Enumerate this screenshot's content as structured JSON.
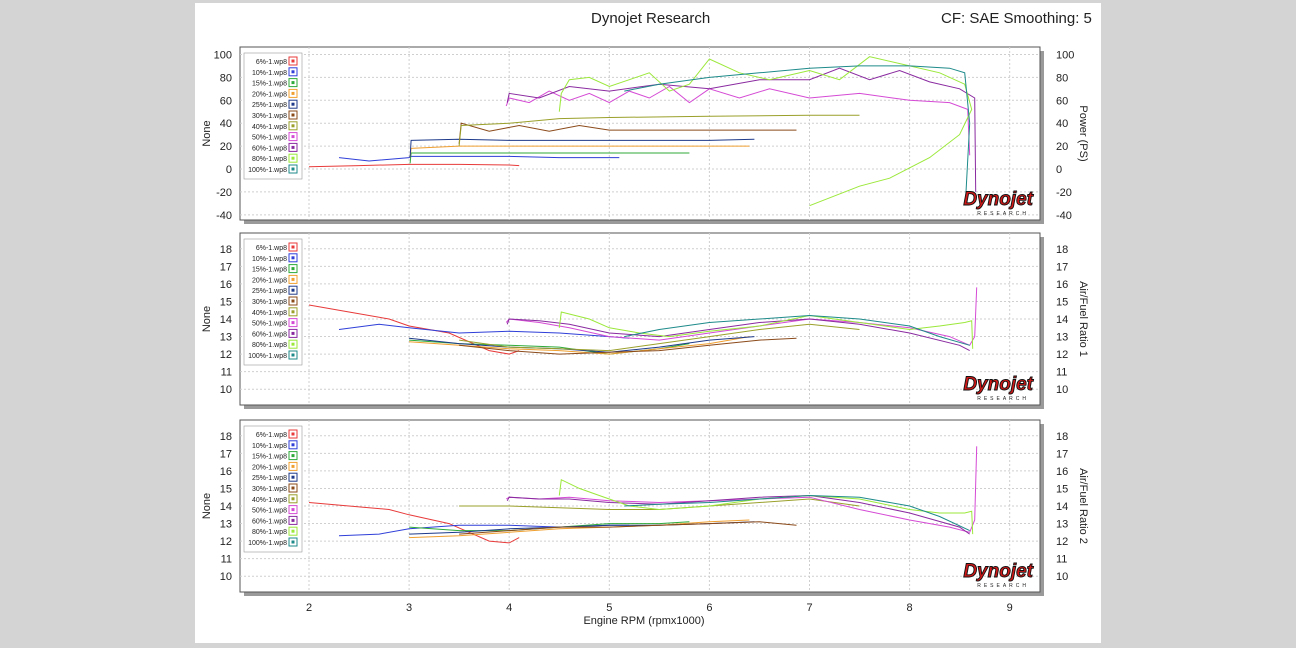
{
  "header": {
    "title": "Dynojet Research",
    "right": "CF: SAE Smoothing: 5"
  },
  "colors": {
    "6%-1.wp8": "#e83a3a",
    "10%-1.wp8": "#2f3fd8",
    "15%-1.wp8": "#2eaa3a",
    "20%-1.wp8": "#f0a030",
    "25%-1.wp8": "#1e3a8a",
    "30%-1.wp8": "#8b4a1a",
    "40%-1.wp8": "#9aa02a",
    "50%-1.wp8": "#d54ad5",
    "60%-1.wp8": "#8a2aa0",
    "80%-1.wp8": "#9be83a",
    "100%-1.wp8": "#1e8a8a"
  },
  "logo_text": "Dynojet",
  "logo_sub": "RESEARCH",
  "chart_data": [
    {
      "type": "line",
      "ylabel_left": "None",
      "ylabel_right": "Power (PS)",
      "xlabel": "",
      "ylim": [
        -40,
        100
      ],
      "xlim": [
        1.3,
        9.4
      ],
      "yticks": [
        "100",
        "80",
        "60",
        "40",
        "20",
        "0",
        "-20",
        "-40"
      ],
      "legend": [
        "6%-1.wp8",
        "10%-1.wp8",
        "15%-1.wp8",
        "20%-1.wp8",
        "25%-1.wp8",
        "30%-1.wp8",
        "40%-1.wp8",
        "50%-1.wp8",
        "60%-1.wp8",
        "80%-1.wp8",
        "100%-1.wp8"
      ],
      "series": [
        {
          "name": "6%-1.wp8",
          "x": [
            2.0,
            2.5,
            3.0,
            3.5,
            4.0,
            4.1
          ],
          "y": [
            2,
            3,
            4,
            4,
            3.5,
            3
          ]
        },
        {
          "name": "10%-1.wp8",
          "x": [
            2.3,
            2.6,
            3.0,
            3.01,
            3.5,
            4.0,
            4.5,
            5.0,
            5.1
          ],
          "y": [
            10,
            7,
            10,
            11,
            11,
            11,
            10,
            10,
            10
          ]
        },
        {
          "name": "15%-1.wp8",
          "x": [
            3.01,
            3.02,
            3.5,
            4.0,
            5.0,
            5.8
          ],
          "y": [
            5,
            14,
            14,
            14,
            14,
            14
          ]
        },
        {
          "name": "20%-1.wp8",
          "x": [
            3.01,
            3.02,
            3.5,
            4.0,
            5.0,
            6.0,
            6.4
          ],
          "y": [
            10,
            18,
            20,
            20,
            20,
            20,
            20
          ]
        },
        {
          "name": "25%-1.wp8",
          "x": [
            3.01,
            3.02,
            3.5,
            4.0,
            5.0,
            6.0,
            6.45
          ],
          "y": [
            10,
            25,
            26,
            25,
            25,
            25,
            26
          ]
        },
        {
          "name": "30%-1.wp8",
          "x": [
            3.5,
            3.52,
            3.8,
            4.1,
            4.4,
            4.7,
            5.0,
            5.5,
            6.0,
            6.5,
            6.87
          ],
          "y": [
            22,
            40,
            33,
            38,
            33,
            38,
            34,
            34,
            34,
            34,
            34
          ]
        },
        {
          "name": "40%-1.wp8",
          "x": [
            3.5,
            3.52,
            4.0,
            4.5,
            5.0,
            6.0,
            7.0,
            7.5
          ],
          "y": [
            20,
            38,
            40,
            44,
            45,
            46,
            47,
            47
          ]
        },
        {
          "name": "50%-1.wp8",
          "x": [
            3.97,
            4.0,
            4.2,
            4.4,
            4.6,
            4.8,
            5.0,
            5.2,
            5.4,
            5.6,
            5.8,
            6.0,
            6.3,
            6.6,
            7.0,
            7.5,
            8.0,
            8.4,
            8.58,
            8.6
          ],
          "y": [
            55,
            62,
            58,
            68,
            60,
            66,
            58,
            68,
            62,
            72,
            58,
            70,
            62,
            70,
            62,
            66,
            60,
            58,
            52,
            12
          ]
        },
        {
          "name": "60%-1.wp8",
          "x": [
            3.98,
            4.0,
            4.3,
            4.6,
            5.0,
            5.5,
            6.0,
            6.5,
            7.0,
            7.3,
            7.6,
            7.9,
            8.2,
            8.5,
            8.65,
            8.66
          ],
          "y": [
            58,
            66,
            62,
            72,
            68,
            74,
            70,
            78,
            78,
            88,
            78,
            86,
            76,
            70,
            62,
            -20
          ]
        },
        {
          "name": "80%-1.wp8",
          "x": [
            4.5,
            4.52,
            4.6,
            4.8,
            5.0,
            5.2,
            5.4,
            5.6,
            5.8,
            6.0,
            6.3,
            6.6,
            7.0,
            7.3,
            7.6,
            8.0,
            8.3,
            8.55,
            8.62,
            8.5,
            8.2,
            7.8,
            7.5,
            7.0
          ],
          "y": [
            50,
            66,
            78,
            80,
            72,
            78,
            84,
            68,
            74,
            96,
            84,
            78,
            86,
            78,
            98,
            90,
            84,
            74,
            52,
            30,
            10,
            -8,
            -15,
            -32
          ]
        },
        {
          "name": "100%-1.wp8",
          "x": [
            5.15,
            5.5,
            6.0,
            6.5,
            7.0,
            7.5,
            8.0,
            8.4,
            8.55,
            8.6,
            8.56
          ],
          "y": [
            68,
            74,
            80,
            84,
            88,
            90,
            90,
            88,
            84,
            40,
            -25
          ]
        }
      ]
    },
    {
      "type": "line",
      "ylabel_left": "None",
      "ylabel_right": "Air/Fuel Ratio 1",
      "xlabel": "",
      "ylim": [
        9.2,
        18.5
      ],
      "xlim": [
        1.3,
        9.4
      ],
      "yticks": [
        "18",
        "17",
        "16",
        "15",
        "14",
        "13",
        "12",
        "11",
        "10"
      ],
      "legend": [
        "6%-1.wp8",
        "10%-1.wp8",
        "15%-1.wp8",
        "20%-1.wp8",
        "25%-1.wp8",
        "30%-1.wp8",
        "40%-1.wp8",
        "50%-1.wp8",
        "60%-1.wp8",
        "80%-1.wp8",
        "100%-1.wp8"
      ],
      "series": [
        {
          "name": "6%-1.wp8",
          "x": [
            2.0,
            2.4,
            2.8,
            3.0,
            3.4,
            3.8,
            4.0,
            4.1
          ],
          "y": [
            14.8,
            14.4,
            14.0,
            13.6,
            13.2,
            12.2,
            12.0,
            12.2
          ]
        },
        {
          "name": "10%-1.wp8",
          "x": [
            2.3,
            2.7,
            3.0,
            3.5,
            4.0,
            4.5,
            5.0,
            5.2
          ],
          "y": [
            13.4,
            13.7,
            13.5,
            13.2,
            13.3,
            13.2,
            13.0,
            12.9
          ]
        },
        {
          "name": "15%-1.wp8",
          "x": [
            3.0,
            3.5,
            4.0,
            4.5,
            5.0,
            5.5,
            5.8
          ],
          "y": [
            12.8,
            12.6,
            12.5,
            12.4,
            12.0,
            12.3,
            12.6
          ]
        },
        {
          "name": "20%-1.wp8",
          "x": [
            3.0,
            3.5,
            4.0,
            4.5,
            5.0,
            5.5,
            6.0,
            6.4
          ],
          "y": [
            12.7,
            12.5,
            12.3,
            12.2,
            12.0,
            12.3,
            12.6,
            13.0
          ]
        },
        {
          "name": "25%-1.wp8",
          "x": [
            3.0,
            3.5,
            4.0,
            4.5,
            5.0,
            5.5,
            6.0,
            6.45
          ],
          "y": [
            12.9,
            12.6,
            12.4,
            12.3,
            12.1,
            12.4,
            12.8,
            13.0
          ]
        },
        {
          "name": "30%-1.wp8",
          "x": [
            3.5,
            4.0,
            4.5,
            5.0,
            5.5,
            6.0,
            6.5,
            6.87
          ],
          "y": [
            12.5,
            12.2,
            12.0,
            12.1,
            12.2,
            12.5,
            12.8,
            12.9
          ]
        },
        {
          "name": "40%-1.wp8",
          "x": [
            3.5,
            4.0,
            4.5,
            5.0,
            5.5,
            6.0,
            6.5,
            7.0,
            7.5
          ],
          "y": [
            12.8,
            12.4,
            12.3,
            12.2,
            12.6,
            13.0,
            13.4,
            13.7,
            13.4
          ]
        },
        {
          "name": "50%-1.wp8",
          "x": [
            3.97,
            4.0,
            4.3,
            4.6,
            5.0,
            5.5,
            6.0,
            6.5,
            7.0,
            7.5,
            8.0,
            8.4,
            8.6,
            8.65,
            8.67
          ],
          "y": [
            13.8,
            14.0,
            13.8,
            13.5,
            13.0,
            12.8,
            13.2,
            13.6,
            14.0,
            13.8,
            13.5,
            13.0,
            12.5,
            13.0,
            15.8
          ]
        },
        {
          "name": "60%-1.wp8",
          "x": [
            3.98,
            4.0,
            4.3,
            4.6,
            5.0,
            5.5,
            6.0,
            6.5,
            7.0,
            7.5,
            8.0,
            8.5,
            8.6
          ],
          "y": [
            13.7,
            14.0,
            13.9,
            13.7,
            13.2,
            13.0,
            13.4,
            13.8,
            14.0,
            13.7,
            13.2,
            12.5,
            12.2
          ]
        },
        {
          "name": "80%-1.wp8",
          "x": [
            4.5,
            4.52,
            4.8,
            5.0,
            5.3,
            5.6,
            6.0,
            6.5,
            7.0,
            7.5,
            8.0,
            8.3,
            8.55,
            8.62,
            8.63
          ],
          "y": [
            13.5,
            14.4,
            14.0,
            13.5,
            13.2,
            13.0,
            13.3,
            13.6,
            14.2,
            13.8,
            13.4,
            13.6,
            13.8,
            13.9,
            12.3
          ]
        },
        {
          "name": "100%-1.wp8",
          "x": [
            5.15,
            5.5,
            6.0,
            6.5,
            7.0,
            7.5,
            8.0,
            8.3,
            8.6
          ],
          "y": [
            13.0,
            13.4,
            13.8,
            14.0,
            14.2,
            14.0,
            13.6,
            13.0,
            12.5
          ]
        }
      ]
    },
    {
      "type": "line",
      "ylabel_left": "None",
      "ylabel_right": "Air/Fuel Ratio 2",
      "xlabel": "Engine RPM (rpmx1000)",
      "ylim": [
        9.2,
        18.5
      ],
      "xlim": [
        1.3,
        9.4
      ],
      "xticks": [
        "2",
        "3",
        "4",
        "5",
        "6",
        "7",
        "8",
        "9"
      ],
      "yticks": [
        "18",
        "17",
        "16",
        "15",
        "14",
        "13",
        "12",
        "11",
        "10"
      ],
      "legend": [
        "6%-1.wp8",
        "10%-1.wp8",
        "15%-1.wp8",
        "20%-1.wp8",
        "25%-1.wp8",
        "30%-1.wp8",
        "40%-1.wp8",
        "50%-1.wp8",
        "60%-1.wp8",
        "80%-1.wp8",
        "100%-1.wp8"
      ],
      "series": [
        {
          "name": "6%-1.wp8",
          "x": [
            2.0,
            2.4,
            2.8,
            3.0,
            3.4,
            3.8,
            4.0,
            4.1
          ],
          "y": [
            14.2,
            14.0,
            13.8,
            13.5,
            13.0,
            12.0,
            11.9,
            12.2
          ]
        },
        {
          "name": "10%-1.wp8",
          "x": [
            2.3,
            2.7,
            3.0,
            3.5,
            4.0,
            4.5,
            5.0,
            5.2
          ],
          "y": [
            12.3,
            12.4,
            12.7,
            12.9,
            12.9,
            12.8,
            12.9,
            12.9
          ]
        },
        {
          "name": "15%-1.wp8",
          "x": [
            3.0,
            3.5,
            4.0,
            4.5,
            5.0,
            5.5,
            5.8
          ],
          "y": [
            12.8,
            12.6,
            12.6,
            12.8,
            13.0,
            13.0,
            13.1
          ]
        },
        {
          "name": "20%-1.wp8",
          "x": [
            3.0,
            3.5,
            4.0,
            4.5,
            5.0,
            5.5,
            6.0,
            6.4
          ],
          "y": [
            12.2,
            12.3,
            12.5,
            12.7,
            12.8,
            12.9,
            13.1,
            13.2
          ]
        },
        {
          "name": "25%-1.wp8",
          "x": [
            3.0,
            3.5,
            4.0,
            4.5,
            5.0,
            5.5,
            6.0,
            6.45
          ],
          "y": [
            12.4,
            12.5,
            12.7,
            12.8,
            12.9,
            12.9,
            13.0,
            13.1
          ]
        },
        {
          "name": "30%-1.wp8",
          "x": [
            3.5,
            4.0,
            4.5,
            5.0,
            5.5,
            6.0,
            6.5,
            6.87
          ],
          "y": [
            12.4,
            12.6,
            12.8,
            12.8,
            12.9,
            13.0,
            13.1,
            12.9
          ]
        },
        {
          "name": "40%-1.wp8",
          "x": [
            3.5,
            4.0,
            4.5,
            5.0,
            5.5,
            6.0,
            6.5,
            7.0,
            7.5
          ],
          "y": [
            14.0,
            14.0,
            13.9,
            13.8,
            13.8,
            14.0,
            14.2,
            14.4,
            14.0
          ]
        },
        {
          "name": "50%-1.wp8",
          "x": [
            3.97,
            4.0,
            4.3,
            4.6,
            5.0,
            5.5,
            6.0,
            6.5,
            7.0,
            7.5,
            8.0,
            8.4,
            8.6,
            8.65,
            8.67
          ],
          "y": [
            14.4,
            14.5,
            14.4,
            14.5,
            14.3,
            14.2,
            14.3,
            14.4,
            14.5,
            13.8,
            13.2,
            12.8,
            12.5,
            13.2,
            17.4
          ]
        },
        {
          "name": "60%-1.wp8",
          "x": [
            3.98,
            4.0,
            4.3,
            4.6,
            5.0,
            5.5,
            6.0,
            6.5,
            7.0,
            7.5,
            8.0,
            8.5,
            8.6
          ],
          "y": [
            14.3,
            14.5,
            14.4,
            14.4,
            14.2,
            14.1,
            14.3,
            14.5,
            14.6,
            14.2,
            13.6,
            12.8,
            12.4
          ]
        },
        {
          "name": "80%-1.wp8",
          "x": [
            4.5,
            4.52,
            4.7,
            4.9,
            5.2,
            5.5,
            6.0,
            6.5,
            7.0,
            7.5,
            8.0,
            8.3,
            8.55,
            8.62,
            8.63
          ],
          "y": [
            14.6,
            15.5,
            15.0,
            14.6,
            14.0,
            13.8,
            14.0,
            14.4,
            14.6,
            14.4,
            13.8,
            13.6,
            13.6,
            13.7,
            12.4
          ]
        },
        {
          "name": "100%-1.wp8",
          "x": [
            5.15,
            5.5,
            6.0,
            6.5,
            7.0,
            7.5,
            8.0,
            8.3,
            8.6
          ],
          "y": [
            14.0,
            14.1,
            14.2,
            14.4,
            14.6,
            14.5,
            14.0,
            13.4,
            12.6
          ]
        }
      ]
    }
  ]
}
